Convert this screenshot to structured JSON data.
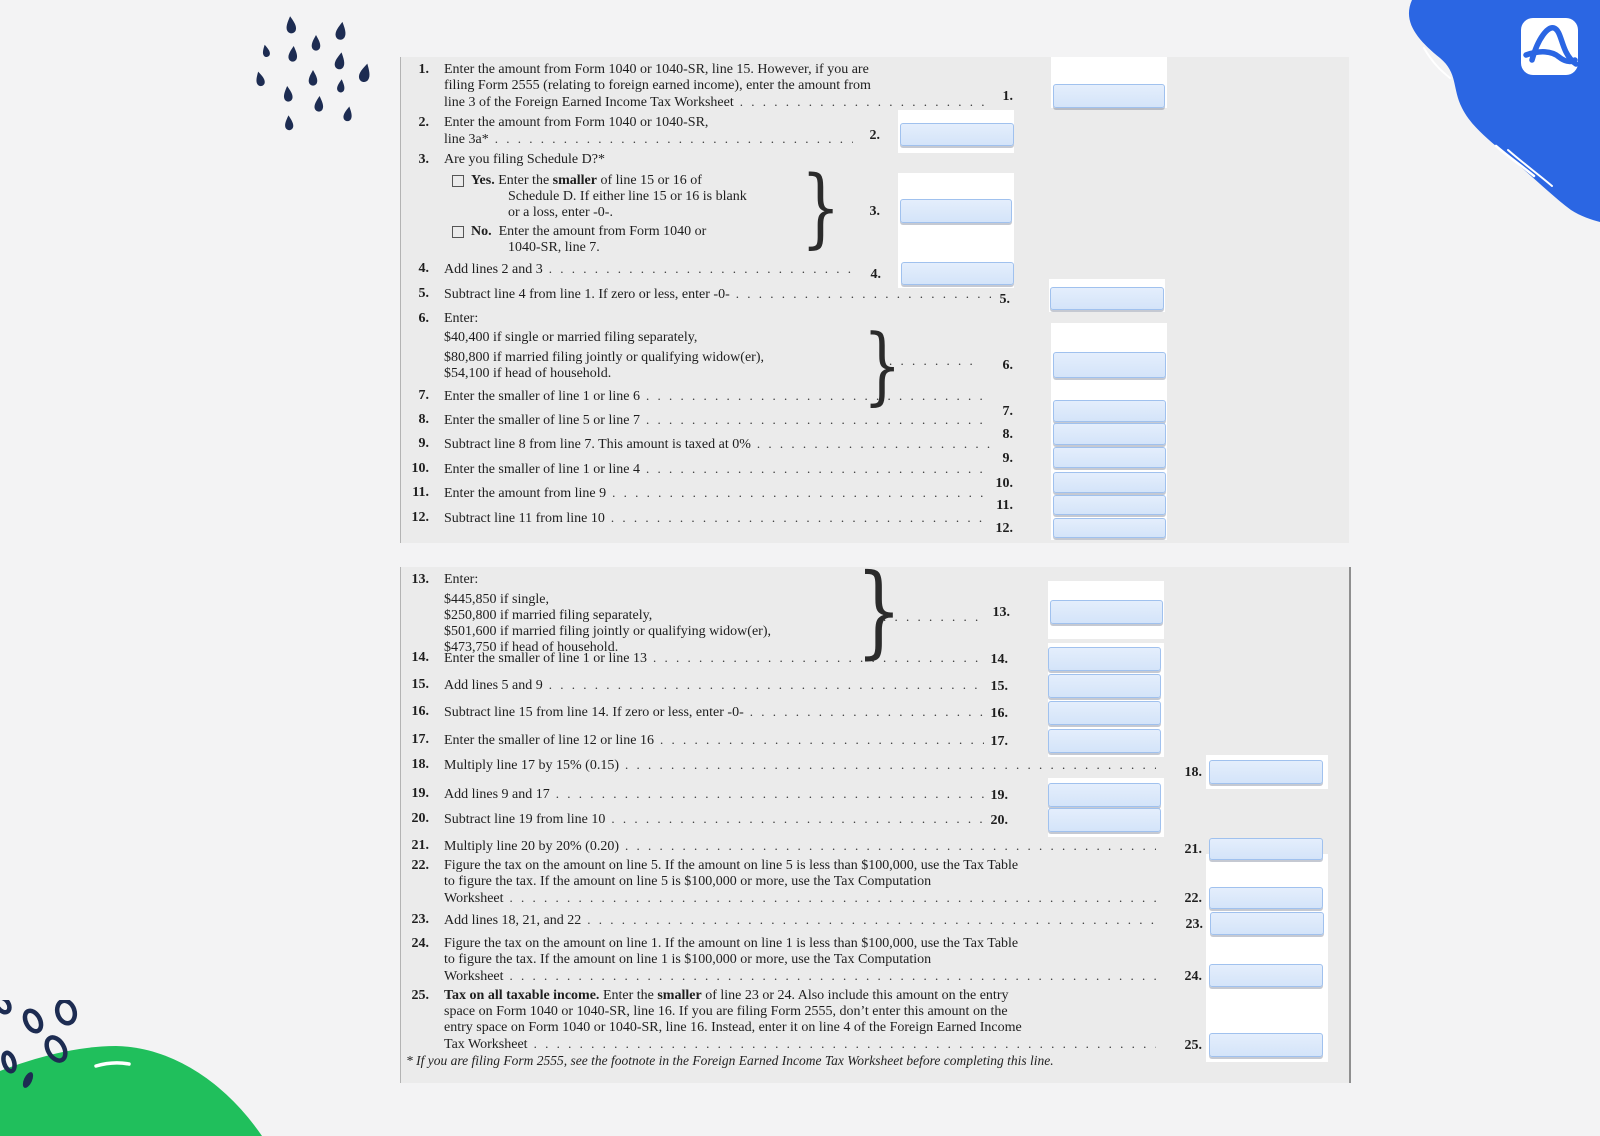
{
  "colors": {
    "page_bg": "#f3f3f4",
    "panel_bg": "#ebebeb",
    "navy": "#1d2c52",
    "blue_blob": "#2b66e3",
    "green_blob": "#20bf5c",
    "input_fill": "#dbe9fb",
    "input_border": "#a0c1ee"
  },
  "decor": {
    "raindrops": "raindrops-decoration",
    "blue_blob": "blue-brush-blob",
    "pdf_logo": "pdf-logo",
    "green_hill": "green-hill-decoration",
    "rings": "rings-decoration"
  },
  "panel1": {
    "rows": [
      {
        "id": "r1",
        "num": "1.",
        "cls": "w547",
        "lines": [
          {
            "segs": [
              {
                "t": "Enter the amount from Form 1040 or 1040-SR, line 15. However, if you are"
              }
            ]
          },
          {
            "segs": [
              {
                "t": "filing Form 2555 (relating to foreign earned income), enter the amount from"
              }
            ]
          },
          {
            "segs": [
              {
                "t": "line 3 of the Foreign Earned Income Tax Worksheet"
              }
            ],
            "leader": true
          }
        ]
      },
      {
        "id": "r2",
        "num": "2.",
        "cls": "w409",
        "lines": [
          {
            "segs": [
              {
                "t": "Enter the amount from Form 1040 or 1040-SR,"
              }
            ]
          },
          {
            "segs": [
              {
                "t": "line 3a*"
              }
            ],
            "leader": true
          }
        ]
      },
      {
        "id": "r3",
        "num": "3.",
        "cls": "w430",
        "lines": [
          {
            "segs": [
              {
                "t": "Are you filing Schedule D?*"
              }
            ]
          },
          {
            "segs": [
              {
                "cb": true,
                "name": "yes-checkbox"
              },
              {
                "t": "Yes.",
                "b": true
              },
              {
                "t": " Enter the "
              },
              {
                "t": "smaller",
                "b": true
              },
              {
                "t": " of line 15 or 16 of"
              }
            ]
          },
          {
            "segs": [
              {
                "t": "Schedule D. If either line 15 or 16 is blank"
              }
            ]
          },
          {
            "segs": [
              {
                "t": "or a loss, enter -0-."
              }
            ]
          },
          {
            "segs": [
              {
                "cb": true,
                "name": "no-checkbox"
              },
              {
                "t": "No.",
                "b": true
              },
              {
                "t": "  Enter the amount from Form 1040 or"
              }
            ]
          },
          {
            "segs": [
              {
                "t": "1040-SR, line 7."
              }
            ]
          }
        ]
      },
      {
        "id": "r4",
        "num": "4.",
        "cls": "w409",
        "lines": [
          {
            "segs": [
              {
                "t": "Add lines 2 and 3"
              }
            ],
            "leader": true
          }
        ]
      },
      {
        "id": "r5",
        "num": "5.",
        "cls": "w547",
        "lines": [
          {
            "segs": [
              {
                "t": "Subtract line 4 from line 1. If zero or less, enter -0-"
              }
            ],
            "leader": true
          }
        ]
      },
      {
        "id": "r6",
        "num": "6.",
        "cls": "w520",
        "lines": [
          {
            "segs": [
              {
                "t": "Enter:"
              }
            ]
          },
          {
            "segs": [
              {
                "t": "$40,400 if single or married filing separately,"
              }
            ]
          },
          {
            "segs": [
              {
                "t": "$80,800 if married filing jointly or qualifying widow(er),"
              }
            ]
          },
          {
            "segs": [
              {
                "t": "$54,100 if head of household."
              }
            ]
          }
        ]
      },
      {
        "id": "r7",
        "num": "7.",
        "cls": "w547",
        "lines": [
          {
            "segs": [
              {
                "t": "Enter the smaller of line 1 or line 6"
              }
            ],
            "leader": true
          }
        ]
      },
      {
        "id": "r8",
        "num": "8.",
        "cls": "w547",
        "lines": [
          {
            "segs": [
              {
                "t": "Enter the smaller of line 5 or line 7"
              }
            ],
            "leader": true
          }
        ]
      },
      {
        "id": "r9",
        "num": "9.",
        "cls": "w547",
        "lines": [
          {
            "segs": [
              {
                "t": "Subtract line 8 from line 7. This amount is taxed at 0%"
              }
            ],
            "leader": true
          }
        ]
      },
      {
        "id": "r10",
        "num": "10.",
        "cls": "w547",
        "lines": [
          {
            "segs": [
              {
                "t": "Enter the smaller of line 1 or line 4"
              }
            ],
            "leader": true
          }
        ]
      },
      {
        "id": "r11",
        "num": "11.",
        "cls": "w547",
        "lines": [
          {
            "segs": [
              {
                "t": "Enter the amount from line 9"
              }
            ],
            "leader": true
          }
        ]
      },
      {
        "id": "r12",
        "num": "12.",
        "cls": "w547",
        "lines": [
          {
            "segs": [
              {
                "t": "Subtract line 11 from line 10"
              }
            ],
            "leader": true
          }
        ]
      }
    ],
    "boxes": [
      {
        "id": "b1",
        "label": "1.",
        "gap": "g40"
      },
      {
        "id": "b2",
        "label": "2.",
        "gap": "g20"
      },
      {
        "id": "b3",
        "label": "3.",
        "gap": "g20"
      },
      {
        "id": "b4",
        "label": "4.",
        "gap": "g20"
      },
      {
        "id": "b5",
        "label": "5.",
        "gap": "g40"
      },
      {
        "id": "b6",
        "label": "6.",
        "gap": "g40"
      },
      {
        "id": "b7",
        "label": "7.",
        "gap": "g40"
      },
      {
        "id": "b8",
        "label": "8.",
        "gap": "g40"
      },
      {
        "id": "b9",
        "label": "9.",
        "gap": "g40"
      },
      {
        "id": "b10",
        "label": "10.",
        "gap": "g40"
      },
      {
        "id": "b11",
        "label": "11.",
        "gap": "g40"
      },
      {
        "id": "b12",
        "label": "12.",
        "gap": "g40"
      }
    ]
  },
  "panel2": {
    "rows": [
      {
        "id": "r13",
        "num": "13.",
        "cls": "w520",
        "lines": [
          {
            "segs": [
              {
                "t": "Enter:"
              }
            ]
          },
          {
            "segs": [
              {
                "t": "$445,850 if single,"
              }
            ]
          },
          {
            "segs": [
              {
                "t": "$250,800 if married filing separately,"
              }
            ]
          },
          {
            "segs": [
              {
                "t": "$501,600 if married filing jointly or qualifying widow(er),"
              }
            ]
          },
          {
            "segs": [
              {
                "t": "$473,750 if head of household."
              }
            ]
          }
        ]
      },
      {
        "id": "r14",
        "num": "14.",
        "cls": "w540",
        "lines": [
          {
            "segs": [
              {
                "t": "Enter the smaller of line 1 or line 13"
              }
            ],
            "leader": true
          }
        ]
      },
      {
        "id": "r15",
        "num": "15.",
        "cls": "w540",
        "lines": [
          {
            "segs": [
              {
                "t": "Add lines 5 and 9"
              }
            ],
            "leader": true
          }
        ]
      },
      {
        "id": "r16",
        "num": "16.",
        "cls": "w540",
        "lines": [
          {
            "segs": [
              {
                "t": "Subtract line 15 from line 14. If zero or less, enter -0-"
              }
            ],
            "leader": true
          }
        ]
      },
      {
        "id": "r17",
        "num": "17.",
        "cls": "w540",
        "lines": [
          {
            "segs": [
              {
                "t": "Enter the smaller of line 12 or line 16"
              }
            ],
            "leader": true
          }
        ]
      },
      {
        "id": "r18",
        "num": "18.",
        "cls": "w712",
        "lines": [
          {
            "segs": [
              {
                "t": "Multiply line 17 by 15% (0.15)"
              }
            ],
            "leader": true
          }
        ]
      },
      {
        "id": "r19",
        "num": "19.",
        "cls": "w540",
        "lines": [
          {
            "segs": [
              {
                "t": "Add lines 9 and 17"
              }
            ],
            "leader": true
          }
        ]
      },
      {
        "id": "r20",
        "num": "20.",
        "cls": "w540",
        "lines": [
          {
            "segs": [
              {
                "t": "Subtract line 19 from line 10"
              }
            ],
            "leader": true
          }
        ]
      },
      {
        "id": "r21",
        "num": "21.",
        "cls": "w712",
        "lines": [
          {
            "segs": [
              {
                "t": "Multiply line 20 by 20% (0.20)"
              }
            ],
            "leader": true
          }
        ]
      },
      {
        "id": "r22",
        "num": "22.",
        "cls": "w712",
        "lines": [
          {
            "segs": [
              {
                "t": "Figure the tax on the amount on line 5. If the amount on line 5 is less than $100,000, use the Tax Table"
              }
            ]
          },
          {
            "segs": [
              {
                "t": "to figure the tax. If the amount on line 5 is $100,000 or more, use the Tax Computation"
              }
            ]
          },
          {
            "segs": [
              {
                "t": "Worksheet"
              }
            ],
            "leader": true
          }
        ]
      },
      {
        "id": "r23",
        "num": "23.",
        "cls": "w712",
        "lines": [
          {
            "segs": [
              {
                "t": "Add lines 18, 21, and 22"
              }
            ],
            "leader": true
          }
        ]
      },
      {
        "id": "r24",
        "num": "24.",
        "cls": "w712",
        "lines": [
          {
            "segs": [
              {
                "t": "Figure the tax on the amount on line 1. If the amount on line 1 is less than $100,000, use the Tax Table"
              }
            ]
          },
          {
            "segs": [
              {
                "t": "to figure the tax. If the amount on line 1 is $100,000 or more, use the Tax Computation"
              }
            ]
          },
          {
            "segs": [
              {
                "t": "Worksheet"
              }
            ],
            "leader": true
          }
        ]
      },
      {
        "id": "r25",
        "num": "25.",
        "cls": "w712",
        "lines": [
          {
            "segs": [
              {
                "t": "Tax on all taxable income.",
                "b": true
              },
              {
                "t": " Enter the "
              },
              {
                "t": "smaller",
                "b": true
              },
              {
                "t": " of line 23 or 24. Also include this amount on the entry"
              }
            ]
          },
          {
            "segs": [
              {
                "t": "space on Form 1040 or 1040-SR, line 16. If you are filing Form 2555, don’t enter this amount on the"
              }
            ]
          },
          {
            "segs": [
              {
                "t": "entry space on Form 1040 or 1040-SR, line 16. Instead, enter it on line 4 of the Foreign Earned Income"
              }
            ]
          },
          {
            "segs": [
              {
                "t": "Tax Worksheet"
              }
            ],
            "leader": true
          }
        ]
      }
    ],
    "boxes": [
      {
        "id": "b13",
        "label": "13.",
        "gap": "g40"
      },
      {
        "id": "b14",
        "label": "14.",
        "gap": "g40"
      },
      {
        "id": "b15",
        "label": "15.",
        "gap": "g40"
      },
      {
        "id": "b16",
        "label": "16.",
        "gap": "g40"
      },
      {
        "id": "b17",
        "label": "17.",
        "gap": "g40"
      },
      {
        "id": "b18",
        "label": "18.",
        "gap": "g7"
      },
      {
        "id": "b19",
        "label": "19.",
        "gap": "g40"
      },
      {
        "id": "b20",
        "label": "20.",
        "gap": "g40"
      },
      {
        "id": "b21",
        "label": "21.",
        "gap": "g7"
      },
      {
        "id": "b22",
        "label": "22.",
        "gap": "g7"
      },
      {
        "id": "b23",
        "label": "23.",
        "gap": "g7"
      },
      {
        "id": "b24",
        "label": "24.",
        "gap": "g7"
      },
      {
        "id": "b25",
        "label": "25.",
        "gap": "g7"
      }
    ],
    "footnote": "* If you are filing Form 2555, see the footnote in the Foreign Earned Income Tax Worksheet before completing this line."
  }
}
